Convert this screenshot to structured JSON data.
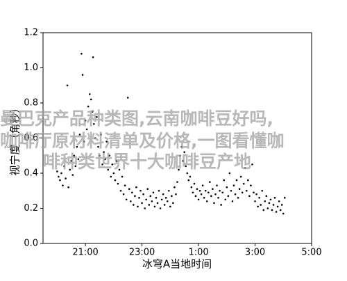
{
  "chart_data": {
    "type": "scatter",
    "x_label": "冰穹A当地时间",
    "y_label": "视宁度（角秒）",
    "xlim": [
      19.5,
      29
    ],
    "xticks": [
      {
        "value": 21,
        "label": "21:00"
      },
      {
        "value": 23,
        "label": "23:00"
      },
      {
        "value": 25,
        "label": "1:00"
      },
      {
        "value": 27,
        "label": "3:00"
      },
      {
        "value": 29,
        "label": "5:00"
      }
    ],
    "ylim": [
      0,
      1.2
    ],
    "yticks": [
      {
        "value": 0,
        "label": "0.0"
      },
      0.2,
      0.4,
      0.6,
      0.8,
      {
        "value": 1,
        "label": "1.0"
      },
      1.2
    ],
    "color": "#000000",
    "x": [
      20.0,
      20.05,
      20.1,
      20.15,
      20.2,
      20.25,
      20.3,
      20.36,
      20.4,
      20.45,
      20.5,
      20.55,
      20.6,
      20.65,
      20.7,
      20.75,
      20.8,
      20.86,
      20.9,
      20.95,
      21.0,
      21.05,
      21.1,
      21.15,
      21.2,
      21.25,
      21.27,
      21.3,
      21.35,
      21.4,
      21.45,
      21.5,
      21.55,
      21.6,
      21.65,
      21.7,
      21.75,
      21.8,
      21.85,
      21.9,
      21.95,
      22.0,
      22.05,
      22.1,
      22.15,
      22.2,
      22.25,
      22.3,
      22.35,
      22.4,
      22.45,
      22.5,
      22.55,
      22.6,
      22.65,
      22.7,
      22.75,
      22.8,
      22.85,
      22.9,
      22.95,
      23.0,
      23.05,
      23.1,
      23.15,
      23.2,
      23.25,
      23.3,
      23.35,
      23.4,
      23.45,
      23.5,
      23.55,
      23.6,
      23.65,
      23.7,
      23.75,
      23.8,
      23.85,
      23.9,
      23.95,
      24.0,
      24.05,
      24.1,
      24.15,
      24.2,
      24.25,
      24.3,
      24.35,
      24.4,
      24.45,
      24.5,
      24.55,
      24.6,
      24.65,
      24.7,
      24.75,
      24.8,
      24.85,
      24.9,
      24.95,
      25.0,
      25.05,
      25.1,
      25.15,
      25.2,
      25.25,
      25.3,
      25.35,
      25.4,
      25.45,
      25.5,
      25.55,
      25.6,
      25.65,
      25.7,
      25.75,
      25.8,
      25.85,
      25.9,
      25.95,
      26.0,
      26.05,
      26.1,
      26.15,
      26.2,
      26.25,
      26.3,
      26.35,
      26.4,
      26.45,
      26.5,
      26.55,
      26.6,
      26.65,
      26.7,
      26.75,
      26.8,
      26.85,
      26.9,
      26.95,
      27.0,
      27.05,
      27.1,
      27.15,
      27.2,
      27.25,
      27.3,
      27.35,
      27.4,
      27.45,
      27.5,
      27.55,
      27.6,
      27.65,
      27.7,
      27.75,
      27.8,
      27.85,
      27.9,
      27.95,
      28.0,
      28.05
    ],
    "values": [
      0.41,
      0.38,
      0.36,
      0.4,
      0.33,
      0.44,
      0.37,
      0.9,
      0.32,
      0.42,
      0.47,
      0.39,
      0.5,
      0.44,
      0.55,
      0.48,
      0.62,
      1.08,
      0.96,
      0.58,
      0.7,
      0.65,
      0.78,
      0.85,
      0.82,
      0.75,
      1.06,
      0.68,
      0.6,
      0.72,
      0.55,
      0.5,
      0.62,
      0.45,
      0.52,
      0.48,
      0.58,
      0.42,
      0.5,
      0.38,
      0.45,
      0.4,
      0.36,
      0.47,
      0.34,
      0.42,
      0.3,
      0.38,
      0.28,
      0.33,
      0.25,
      0.83,
      0.31,
      0.24,
      0.29,
      0.22,
      0.27,
      0.32,
      0.21,
      0.26,
      0.3,
      0.23,
      0.28,
      0.2,
      0.25,
      0.31,
      0.22,
      0.27,
      0.24,
      0.29,
      0.21,
      0.26,
      0.23,
      0.3,
      0.2,
      0.25,
      0.28,
      0.22,
      0.26,
      0.24,
      0.3,
      0.21,
      0.27,
      0.23,
      0.32,
      0.28,
      0.35,
      0.42,
      0.5,
      0.55,
      0.47,
      0.52,
      0.44,
      0.4,
      0.36,
      0.38,
      0.32,
      0.29,
      0.34,
      0.27,
      0.31,
      0.25,
      0.3,
      0.28,
      0.33,
      0.26,
      0.3,
      0.24,
      0.29,
      0.35,
      0.27,
      0.31,
      0.23,
      0.28,
      0.33,
      0.26,
      0.3,
      0.22,
      0.29,
      0.36,
      0.25,
      0.32,
      0.27,
      0.4,
      0.3,
      0.24,
      0.33,
      0.28,
      0.36,
      0.26,
      0.31,
      0.38,
      0.29,
      0.34,
      0.43,
      0.3,
      0.36,
      0.27,
      0.33,
      0.45,
      0.29,
      0.24,
      0.28,
      0.21,
      0.26,
      0.22,
      0.3,
      0.19,
      0.24,
      0.27,
      0.2,
      0.23,
      0.25,
      0.19,
      0.22,
      0.26,
      0.18,
      0.21,
      0.24,
      0.19,
      0.22,
      0.17,
      0.26
    ]
  },
  "watermark": [
    "曼巴克产品种类图,云南咖啡豆好吗,",
    "咖啡厅原材料清单及价格,一图看懂咖",
    "啡种类世界十大咖啡豆产地"
  ]
}
